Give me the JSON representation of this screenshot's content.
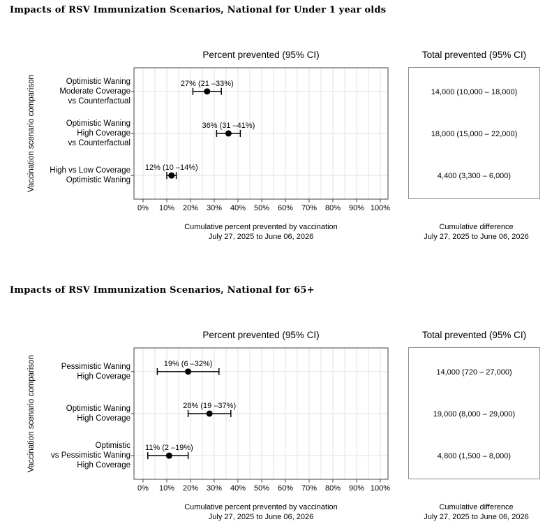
{
  "chart_data": [
    {
      "type": "scatter",
      "title": "Impacts of RSV Immunization Scenarios, National for Under 1 year olds",
      "panel_title": "Percent prevented (95% CI)",
      "totals_title": "Total prevented (95% CI)",
      "ylabel": "Vaccination scenario comparison",
      "xlabel": [
        "Cumulative percent prevented by vaccination",
        "July 27, 2025 to June 06, 2026"
      ],
      "totals_caption": [
        "Cumulative difference",
        "July 27, 2025 to June 06, 2026"
      ],
      "xlim": [
        0,
        100
      ],
      "x_tick_step": 10,
      "x_tick_suffix": "%",
      "grid": true,
      "rows": [
        {
          "label_lines": [
            "Optimistic Waning",
            "Moderate Coverage",
            "vs Counterfactual"
          ],
          "estimate_pct": 27,
          "ci_pct": [
            21,
            33
          ],
          "annotation": "27% (21 –33%)",
          "total": "14,000 (10,000 – 18,000)"
        },
        {
          "label_lines": [
            "Optimistic Waning",
            "High Coverage",
            "vs Counterfactual"
          ],
          "estimate_pct": 36,
          "ci_pct": [
            31,
            41
          ],
          "annotation": "36% (31 –41%)",
          "total": "18,000 (15,000 – 22,000)"
        },
        {
          "label_lines": [
            "High vs Low Coverage",
            "Optimistic Waning"
          ],
          "estimate_pct": 12,
          "ci_pct": [
            10,
            14
          ],
          "annotation": "12% (10 –14%)",
          "total": "4,400 (3,300 – 6,000)"
        }
      ]
    },
    {
      "type": "scatter",
      "title": "Impacts of RSV Immunization Scenarios, National for 65+",
      "panel_title": "Percent prevented (95% CI)",
      "totals_title": "Total prevented (95% CI)",
      "ylabel": "Vaccination scenario comparison",
      "xlabel": [
        "Cumulative percent prevented by vaccination",
        "July 27, 2025 to June 06, 2026"
      ],
      "totals_caption": [
        "Cumulative difference",
        "July 27, 2025 to June 06, 2026"
      ],
      "xlim": [
        0,
        100
      ],
      "x_tick_step": 10,
      "x_tick_suffix": "%",
      "grid": true,
      "rows": [
        {
          "label_lines": [
            "Pessimistic Waning",
            "High Coverage"
          ],
          "estimate_pct": 19,
          "ci_pct": [
            6,
            32
          ],
          "annotation": "19% (6 –32%)",
          "total": "14,000 (720 – 27,000)"
        },
        {
          "label_lines": [
            "Optimistic Waning",
            "High Coverage"
          ],
          "estimate_pct": 28,
          "ci_pct": [
            19,
            37
          ],
          "annotation": "28% (19 –37%)",
          "total": "19,000 (8,000 – 29,000)"
        },
        {
          "label_lines": [
            "Optimistic",
            "vs Pessimistic Waning",
            "High Coverage"
          ],
          "estimate_pct": 11,
          "ci_pct": [
            2,
            19
          ],
          "annotation": "11% (2 –19%)",
          "total": "4,800 (1,500 – 8,000)"
        }
      ]
    }
  ]
}
